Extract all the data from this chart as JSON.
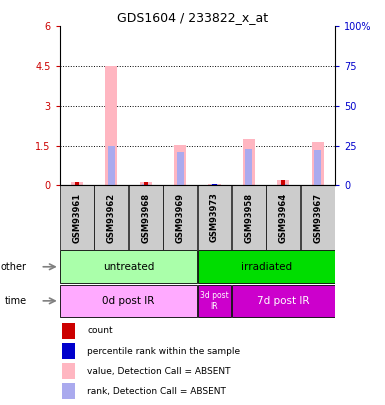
{
  "title": "GDS1604 / 233822_x_at",
  "samples": [
    "GSM93961",
    "GSM93962",
    "GSM93968",
    "GSM93969",
    "GSM93973",
    "GSM93958",
    "GSM93964",
    "GSM93967"
  ],
  "pink_bars": [
    0.13,
    4.5,
    0.13,
    1.53,
    0.05,
    1.75,
    0.22,
    1.62
  ],
  "blue_bars": [
    0.0,
    25.0,
    1.0,
    21.0,
    1.0,
    23.0,
    1.0,
    22.0
  ],
  "red_bars": [
    0.13,
    0.0,
    0.13,
    0.0,
    0.0,
    0.0,
    0.22,
    0.0
  ],
  "blue_small_bars": [
    0.0,
    0.0,
    0.0,
    0.0,
    1.0,
    0.0,
    0.0,
    0.0
  ],
  "ylim_left": [
    0,
    6
  ],
  "ylim_right": [
    0,
    100
  ],
  "yticks_left": [
    0,
    1.5,
    3.0,
    4.5,
    6.0
  ],
  "ytick_labels_left": [
    "0",
    "1.5",
    "3",
    "4.5",
    "6"
  ],
  "yticks_right": [
    0,
    25,
    50,
    75,
    100
  ],
  "ytick_labels_right": [
    "0",
    "25",
    "50",
    "75",
    "100%"
  ],
  "hlines": [
    1.5,
    3.0,
    4.5
  ],
  "group_other": [
    {
      "label": "untreated",
      "start": 0,
      "end": 3,
      "color": "#aaffaa"
    },
    {
      "label": "irradiated",
      "start": 4,
      "end": 7,
      "color": "#00dd00"
    }
  ],
  "group_time": [
    {
      "label": "0d post IR",
      "start": 0,
      "end": 3,
      "color": "#ffaaff"
    },
    {
      "label": "3d post\nIR",
      "start": 4,
      "end": 4,
      "color": "#cc00cc"
    },
    {
      "label": "7d post IR",
      "start": 5,
      "end": 7,
      "color": "#cc00cc"
    }
  ],
  "legend_items": [
    {
      "label": "count",
      "color": "#cc0000"
    },
    {
      "label": "percentile rank within the sample",
      "color": "#0000cc"
    },
    {
      "label": "value, Detection Call = ABSENT",
      "color": "#ffb6c1"
    },
    {
      "label": "rank, Detection Call = ABSENT",
      "color": "#aaaaee"
    }
  ],
  "pink_color": "#ffb6c1",
  "blue_color": "#aaaaee",
  "red_color": "#cc0000",
  "blue_dot_color": "#0000cc",
  "left_tick_color": "#cc0000",
  "right_tick_color": "#0000cc",
  "sample_box_color": "#cccccc",
  "bg_color": "#ffffff"
}
